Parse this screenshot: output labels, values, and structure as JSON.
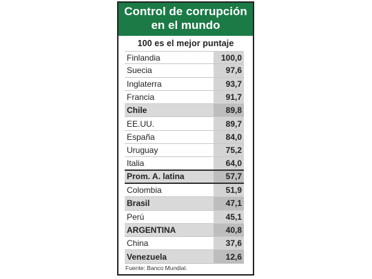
{
  "header": {
    "title_line1": "Control de corrupción",
    "title_line2": "en el mundo",
    "subtitle": "100 es el mejor puntaje"
  },
  "footer": {
    "source": "Fuente: Banco Mundial."
  },
  "colors": {
    "header_bg": "#1b7a46",
    "value_bg": "#d4d4d4",
    "highlight_bg": "#d9d9d9"
  },
  "chart_data": {
    "type": "table",
    "title": "Control de corrupción en el mundo",
    "subtitle": "100 es el mejor puntaje",
    "categories": [
      "Finlandia",
      "Suecia",
      "Inglaterra",
      "Francia",
      "Chile",
      "EE.UU.",
      "España",
      "Uruguay",
      "Italia",
      "Prom. A. latina",
      "Colombia",
      "Brasil",
      "Perú",
      "ARGENTINA",
      "China",
      "Venezuela"
    ],
    "values": [
      "100,0",
      "97,6",
      "93,7",
      "91,7",
      "89,8",
      "89,7",
      "84,0",
      "75,2",
      "64,0",
      "57,7",
      "51,9",
      "47,1",
      "45,1",
      "40,8",
      "37,6",
      "12,6"
    ],
    "highlighted": [
      "Chile",
      "Brasil",
      "ARGENTINA",
      "Venezuela"
    ],
    "emphasized": [
      "Prom. A. latina"
    ],
    "source": "Fuente: Banco Mundial."
  }
}
